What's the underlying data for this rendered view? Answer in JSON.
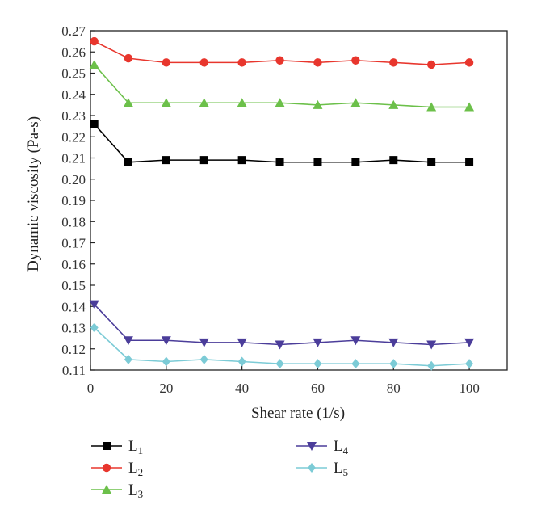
{
  "chart_data": {
    "type": "line",
    "xlabel": "Shear rate (1/s)",
    "ylabel": "Dynamic viscosity (Pa-s)",
    "xlim": [
      0,
      110
    ],
    "ylim": [
      0.11,
      0.27
    ],
    "x_ticks": [
      "0",
      "20",
      "40",
      "60",
      "80",
      "100"
    ],
    "y_ticks": [
      "0.11",
      "0.12",
      "0.13",
      "0.14",
      "0.15",
      "0.16",
      "0.17",
      "0.18",
      "0.19",
      "0.20",
      "0.21",
      "0.22",
      "0.23",
      "0.24",
      "0.25",
      "0.26",
      "0.27"
    ],
    "x": [
      1,
      10,
      20,
      30,
      40,
      50,
      60,
      70,
      80,
      90,
      100
    ],
    "grid": false,
    "legend_position": "bottom",
    "series": [
      {
        "name": "L",
        "sub": "1",
        "color": "#000000",
        "marker": "square",
        "values": [
          0.226,
          0.208,
          0.209,
          0.209,
          0.209,
          0.208,
          0.208,
          0.208,
          0.209,
          0.208,
          0.208
        ]
      },
      {
        "name": "L",
        "sub": "2",
        "color": "#e8362d",
        "marker": "circle",
        "values": [
          0.265,
          0.257,
          0.255,
          0.255,
          0.255,
          0.256,
          0.255,
          0.256,
          0.255,
          0.254,
          0.255
        ]
      },
      {
        "name": "L",
        "sub": "3",
        "color": "#6cc04a",
        "marker": "triangle-up",
        "values": [
          0.254,
          0.236,
          0.236,
          0.236,
          0.236,
          0.236,
          0.235,
          0.236,
          0.235,
          0.234,
          0.234
        ]
      },
      {
        "name": "L",
        "sub": "4",
        "color": "#4b3d9a",
        "marker": "triangle-down",
        "values": [
          0.141,
          0.124,
          0.124,
          0.123,
          0.123,
          0.122,
          0.123,
          0.124,
          0.123,
          0.122,
          0.123
        ]
      },
      {
        "name": "L",
        "sub": "5",
        "color": "#7ccbd6",
        "marker": "diamond",
        "values": [
          0.13,
          0.115,
          0.114,
          0.115,
          0.114,
          0.113,
          0.113,
          0.113,
          0.113,
          0.112,
          0.113
        ]
      }
    ]
  }
}
